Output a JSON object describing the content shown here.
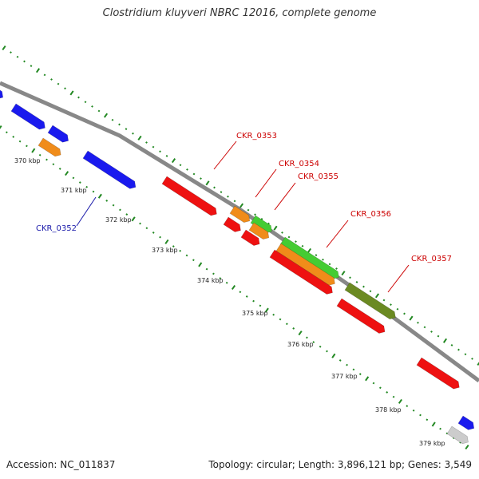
{
  "title": "Clostridium kluyveri NBRC 12016, complete genome",
  "footer": {
    "accession": "Accession: NC_011837",
    "topology": "Topology: circular; Length: 3,896,121 bp; Genes: 3,549"
  },
  "colors": {
    "backbone": "#888888",
    "tick": "#228822",
    "blue_gene": "#1a1aee",
    "red_gene": "#ee1111",
    "orange_gene": "#f08c1a",
    "green_gene": "#44cc33",
    "olive_gene": "#6b8a22",
    "grey_gene": "#cccccc",
    "label_blue": "#1a1aaa",
    "label_red": "#cc0000"
  },
  "kbp_labels": [
    "370 kbp",
    "371 kbp",
    "372 kbp",
    "373 kbp",
    "374 kbp",
    "375 kbp",
    "376 kbp",
    "377 kbp",
    "378 kbp",
    "379 kbp"
  ],
  "gene_labels": [
    {
      "id": "CKR_0352",
      "color": "blue"
    },
    {
      "id": "CKR_0353",
      "color": "red"
    },
    {
      "id": "CKR_0354",
      "color": "red"
    },
    {
      "id": "CKR_0355",
      "color": "red"
    },
    {
      "id": "CKR_0356",
      "color": "red"
    },
    {
      "id": "CKR_0357",
      "color": "red"
    }
  ]
}
